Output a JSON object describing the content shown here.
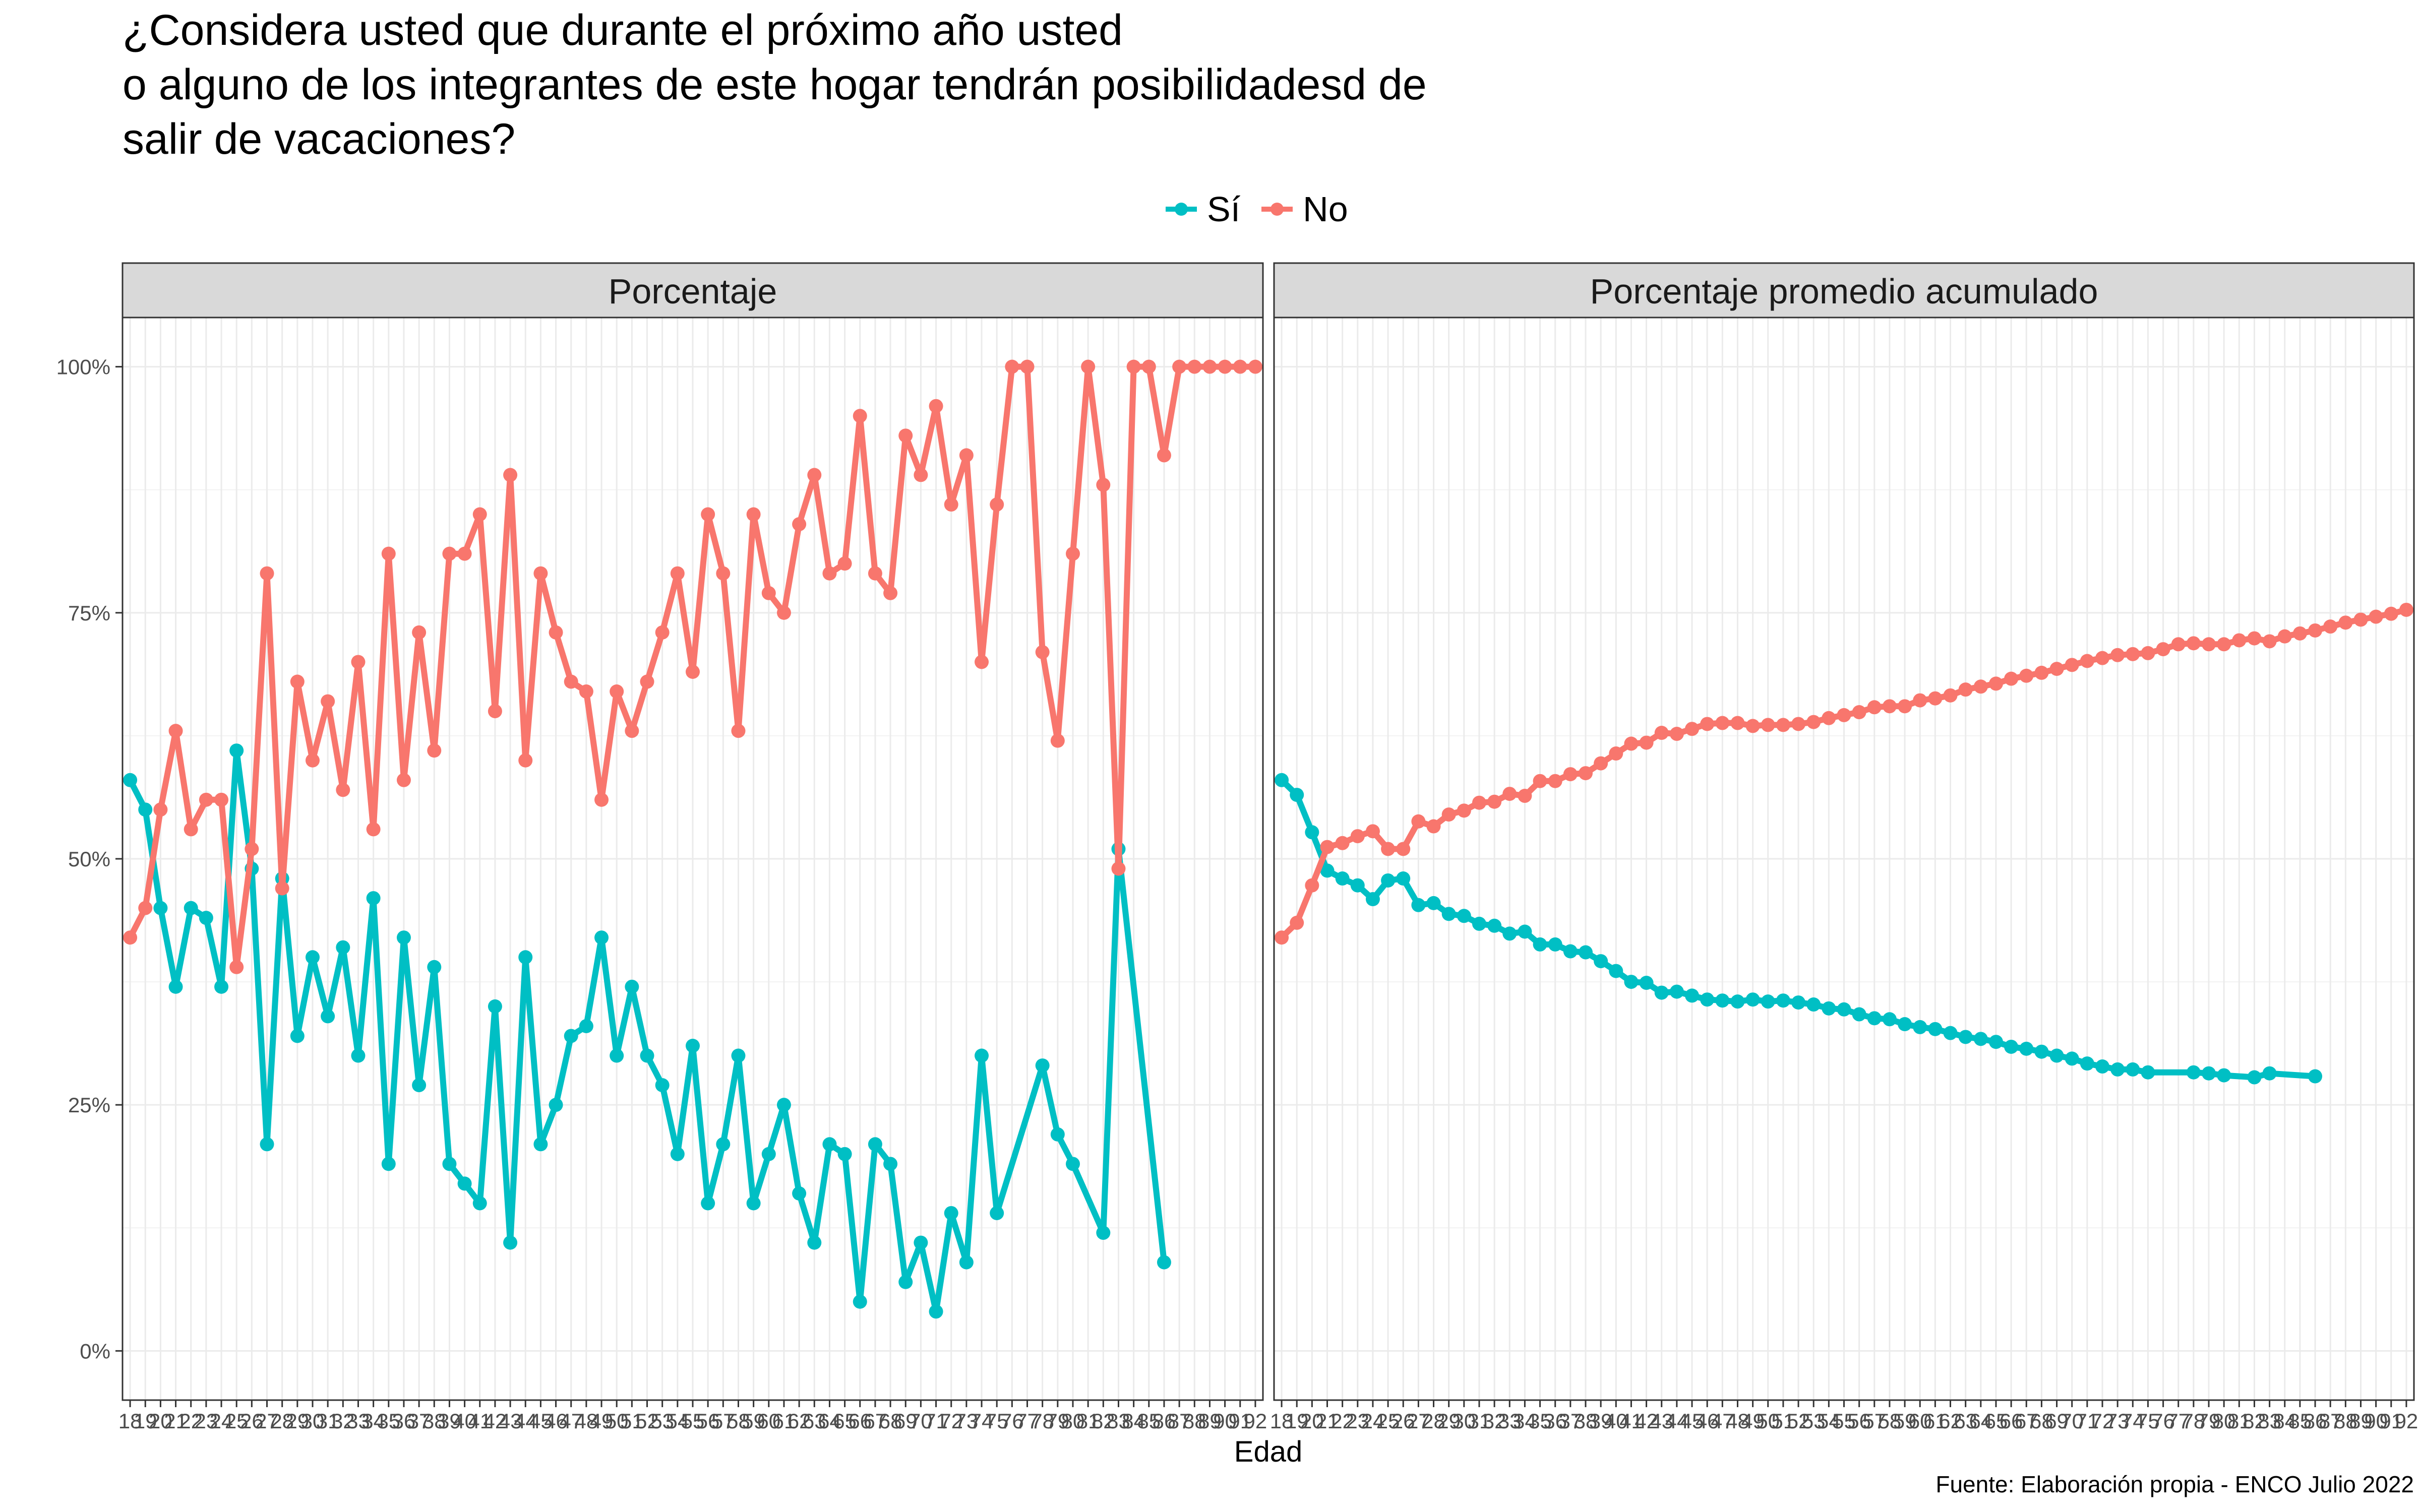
{
  "title_lines": [
    "¿Considera usted que durante el próximo año usted",
    "o alguno de los integrantes de este hogar tendrán posibilidadesd de",
    "salir de vacaciones?"
  ],
  "caption": "Fuente: Elaboración propia - ENCO Julio 2022",
  "colors": {
    "si": "#00BFC4",
    "no": "#F8766D"
  },
  "legend": [
    {
      "key": "si",
      "label": "Sí"
    },
    {
      "key": "no",
      "label": "No"
    }
  ],
  "chart_data": {
    "type": "line",
    "xlabel": "Edad",
    "ylabel": "",
    "ylim": [
      0,
      100
    ],
    "y_tick_labels": [
      "0%",
      "25%",
      "50%",
      "75%",
      "100%"
    ],
    "y_ticks": [
      0,
      25,
      50,
      75,
      100
    ],
    "x_ticks": [
      18,
      19,
      20,
      21,
      22,
      23,
      24,
      25,
      26,
      27,
      28,
      29,
      30,
      31,
      32,
      33,
      34,
      35,
      36,
      37,
      38,
      39,
      40,
      41,
      42,
      43,
      44,
      45,
      46,
      47,
      48,
      49,
      50,
      51,
      52,
      53,
      54,
      55,
      56,
      57,
      58,
      59,
      60,
      61,
      62,
      63,
      64,
      65,
      66,
      67,
      68,
      69,
      70,
      71,
      72,
      73,
      74,
      75,
      76,
      77,
      78,
      79,
      80,
      81,
      82,
      83,
      84,
      85,
      86,
      87,
      88,
      89,
      90,
      91,
      92
    ],
    "grid": true,
    "legend_position": "top",
    "panels": [
      {
        "strip": "Porcentaje",
        "series": [
          {
            "name": "Sí",
            "key": "si",
            "x": [
              18,
              19,
              20,
              21,
              22,
              23,
              24,
              25,
              26,
              27,
              28,
              29,
              30,
              31,
              32,
              33,
              34,
              35,
              36,
              37,
              38,
              39,
              40,
              41,
              42,
              43,
              44,
              45,
              46,
              47,
              48,
              49,
              50,
              51,
              52,
              53,
              54,
              55,
              56,
              57,
              58,
              59,
              60,
              61,
              62,
              63,
              64,
              65,
              66,
              67,
              68,
              69,
              70,
              71,
              72,
              73,
              74,
              75,
              76,
              77,
              78,
              79,
              80,
              81,
              82,
              83,
              84,
              85,
              86
            ],
            "y": [
              58,
              55,
              45,
              37,
              45,
              44,
              37,
              61,
              49,
              21,
              48,
              32,
              40,
              34,
              41,
              30,
              46,
              19,
              42,
              27,
              39,
              19,
              17,
              15,
              35,
              11,
              40,
              21,
              25,
              32,
              33,
              42,
              30,
              37,
              30,
              27,
              20,
              31,
              15,
              21,
              30,
              15,
              20,
              25,
              16,
              11,
              21,
              20,
              5,
              21,
              19,
              7,
              11,
              4,
              14,
              9,
              30,
              14,
              null,
              null,
              29,
              22,
              19,
              null,
              12,
              51,
              null,
              null,
              9
            ]
          },
          {
            "name": "No",
            "key": "no",
            "x": [
              18,
              19,
              20,
              21,
              22,
              23,
              24,
              25,
              26,
              27,
              28,
              29,
              30,
              31,
              32,
              33,
              34,
              35,
              36,
              37,
              38,
              39,
              40,
              41,
              42,
              43,
              44,
              45,
              46,
              47,
              48,
              49,
              50,
              51,
              52,
              53,
              54,
              55,
              56,
              57,
              58,
              59,
              60,
              61,
              62,
              63,
              64,
              65,
              66,
              67,
              68,
              69,
              70,
              71,
              72,
              73,
              74,
              75,
              76,
              77,
              78,
              79,
              80,
              81,
              82,
              83,
              84,
              85,
              86,
              87,
              88,
              89,
              90,
              91,
              92
            ],
            "y": [
              42,
              45,
              55,
              63,
              53,
              56,
              56,
              39,
              51,
              79,
              47,
              68,
              60,
              66,
              57,
              70,
              53,
              81,
              58,
              73,
              61,
              81,
              81,
              85,
              65,
              89,
              60,
              79,
              73,
              68,
              67,
              56,
              67,
              63,
              68,
              73,
              79,
              69,
              85,
              79,
              63,
              85,
              77,
              75,
              84,
              89,
              79,
              80,
              95,
              79,
              77,
              93,
              89,
              96,
              86,
              91,
              70,
              86,
              100,
              100,
              71,
              62,
              81,
              100,
              88,
              49,
              100,
              100,
              91,
              100,
              100,
              100,
              100,
              100,
              100
            ]
          }
        ]
      },
      {
        "strip": "Porcentaje promedio acumulado",
        "series": [
          {
            "name": "Sí",
            "key": "si",
            "x": [
              18,
              19,
              20,
              21,
              22,
              23,
              24,
              25,
              26,
              27,
              28,
              29,
              30,
              31,
              32,
              33,
              34,
              35,
              36,
              37,
              38,
              39,
              40,
              41,
              42,
              43,
              44,
              45,
              46,
              47,
              48,
              49,
              50,
              51,
              52,
              53,
              54,
              55,
              56,
              57,
              58,
              59,
              60,
              61,
              62,
              63,
              64,
              65,
              66,
              67,
              68,
              69,
              70,
              71,
              72,
              73,
              74,
              75,
              76,
              77,
              78,
              79,
              80,
              81,
              82,
              83,
              84,
              85,
              86
            ],
            "y": [
              58,
              56.5,
              52.7,
              48.8,
              48,
              47.3,
              45.9,
              47.8,
              48,
              45.3,
              45.5,
              44.4,
              44.2,
              43.4,
              43.2,
              42.4,
              42.6,
              41.3,
              41.3,
              40.6,
              40.5,
              39.6,
              38.6,
              37.5,
              37.4,
              36.4,
              36.5,
              36.1,
              35.7,
              35.6,
              35.5,
              35.7,
              35.5,
              35.6,
              35.4,
              35.2,
              34.8,
              34.7,
              34.2,
              33.8,
              33.7,
              33.2,
              32.9,
              32.7,
              32.3,
              31.9,
              31.7,
              31.4,
              30.9,
              30.7,
              30.4,
              30,
              29.7,
              29.2,
              28.9,
              28.6,
              28.6,
              28.3,
              null,
              null,
              28.3,
              28.2,
              28,
              null,
              27.8,
              28.2,
              null,
              null,
              27.9
            ]
          },
          {
            "name": "No",
            "key": "no",
            "x": [
              18,
              19,
              20,
              21,
              22,
              23,
              24,
              25,
              26,
              27,
              28,
              29,
              30,
              31,
              32,
              33,
              34,
              35,
              36,
              37,
              38,
              39,
              40,
              41,
              42,
              43,
              44,
              45,
              46,
              47,
              48,
              49,
              50,
              51,
              52,
              53,
              54,
              55,
              56,
              57,
              58,
              59,
              60,
              61,
              62,
              63,
              64,
              65,
              66,
              67,
              68,
              69,
              70,
              71,
              72,
              73,
              74,
              75,
              76,
              77,
              78,
              79,
              80,
              81,
              82,
              83,
              84,
              85,
              86,
              87,
              88,
              89,
              90,
              91,
              92
            ],
            "y": [
              42,
              43.5,
              47.3,
              51.2,
              51.6,
              52.3,
              52.8,
              51,
              51,
              53.8,
              53.3,
              54.5,
              54.9,
              55.7,
              55.8,
              56.6,
              56.4,
              57.9,
              57.9,
              58.6,
              58.7,
              59.7,
              60.7,
              61.7,
              61.8,
              62.8,
              62.7,
              63.2,
              63.7,
              63.8,
              63.8,
              63.5,
              63.6,
              63.6,
              63.7,
              63.9,
              64.3,
              64.6,
              64.9,
              65.4,
              65.5,
              65.5,
              66.1,
              66.3,
              66.6,
              67.2,
              67.5,
              67.8,
              68.3,
              68.6,
              68.9,
              69.3,
              69.7,
              70.1,
              70.4,
              70.7,
              70.8,
              70.9,
              71.3,
              71.8,
              71.9,
              71.8,
              71.8,
              72.2,
              72.4,
              72.1,
              72.6,
              72.9,
              73.2,
              73.6,
              74,
              74.3,
              74.6,
              74.9,
              75.3
            ]
          }
        ]
      }
    ]
  }
}
